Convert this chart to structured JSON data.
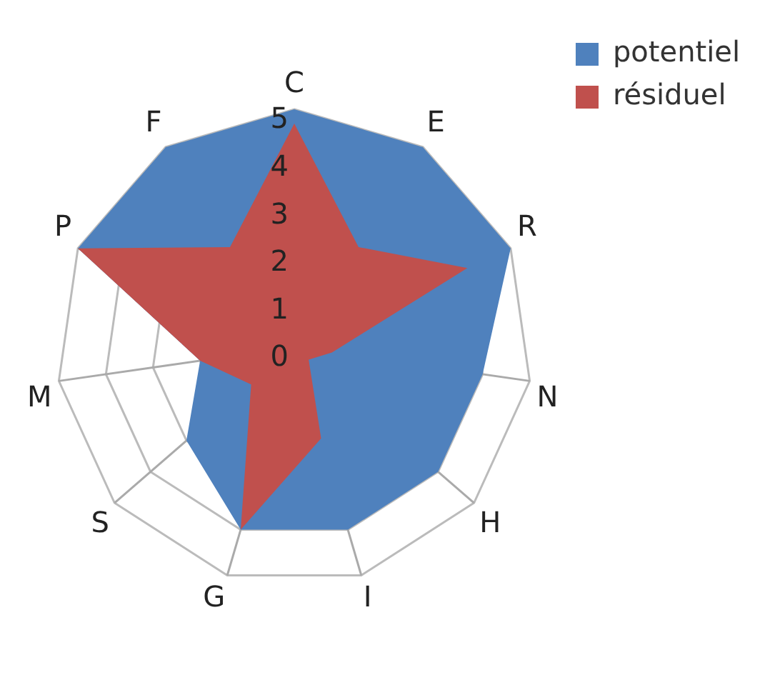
{
  "chart_data": {
    "type": "radar",
    "categories": [
      "C",
      "E",
      "R",
      "N",
      "H",
      "I",
      "G",
      "S",
      "M",
      "P",
      "F"
    ],
    "series": [
      {
        "name": "potentiel",
        "color": "#4f81bd",
        "values": [
          5,
          5,
          5,
          4,
          4,
          4,
          4,
          3,
          2,
          5,
          5
        ]
      },
      {
        "name": "résiduel",
        "color": "#c0504d",
        "values": [
          4.7,
          2.5,
          4,
          0.8,
          0.4,
          2,
          4,
          1.2,
          2,
          5,
          2.5
        ]
      }
    ],
    "ylim": [
      0,
      5
    ],
    "yticks": [
      0,
      1,
      2,
      3,
      4,
      5
    ],
    "legend": "top right",
    "grid": true
  }
}
